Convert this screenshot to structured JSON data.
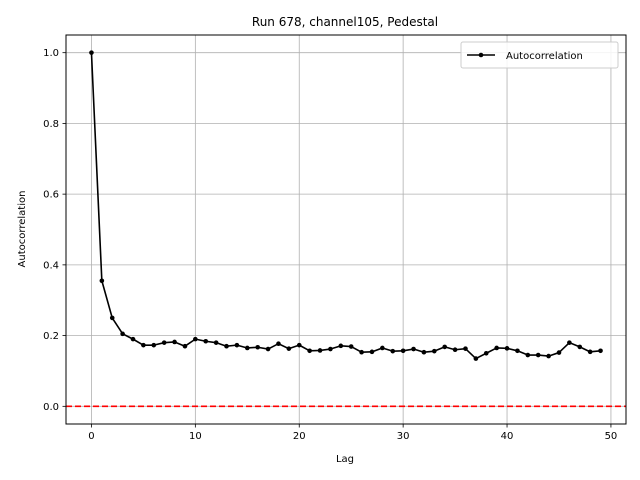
{
  "chart_data": {
    "type": "line",
    "title": "Run 678, channel105, Pedestal",
    "xlabel": "Lag",
    "ylabel": "Autocorrelation",
    "xlim": [
      -2.45,
      51.45
    ],
    "ylim": [
      -0.05,
      1.05
    ],
    "xticks": [
      0,
      10,
      20,
      30,
      40,
      50
    ],
    "yticks": [
      0.0,
      0.2,
      0.4,
      0.6,
      0.8,
      1.0
    ],
    "grid": true,
    "legend": {
      "placement": "top-right",
      "entries": [
        "Autocorrelation"
      ]
    },
    "series": [
      {
        "name": "Autocorrelation",
        "color": "#000000",
        "marker": "circle",
        "x": [
          0,
          1,
          2,
          3,
          4,
          5,
          6,
          7,
          8,
          9,
          10,
          11,
          12,
          13,
          14,
          15,
          16,
          17,
          18,
          19,
          20,
          21,
          22,
          23,
          24,
          25,
          26,
          27,
          28,
          29,
          30,
          31,
          32,
          33,
          34,
          35,
          36,
          37,
          38,
          39,
          40,
          41,
          42,
          43,
          44,
          45,
          46,
          47,
          48,
          49
        ],
        "values": [
          1.0,
          0.355,
          0.25,
          0.205,
          0.19,
          0.173,
          0.173,
          0.18,
          0.182,
          0.17,
          0.19,
          0.184,
          0.18,
          0.17,
          0.173,
          0.165,
          0.167,
          0.162,
          0.177,
          0.163,
          0.173,
          0.157,
          0.158,
          0.162,
          0.171,
          0.169,
          0.153,
          0.154,
          0.165,
          0.156,
          0.157,
          0.162,
          0.153,
          0.156,
          0.168,
          0.16,
          0.163,
          0.135,
          0.15,
          0.165,
          0.164,
          0.157,
          0.145,
          0.145,
          0.142,
          0.152,
          0.18,
          0.168,
          0.154,
          0.157
        ]
      }
    ],
    "reference_line": {
      "y": 0.0,
      "color": "#ff0000",
      "style": "dashed"
    }
  }
}
